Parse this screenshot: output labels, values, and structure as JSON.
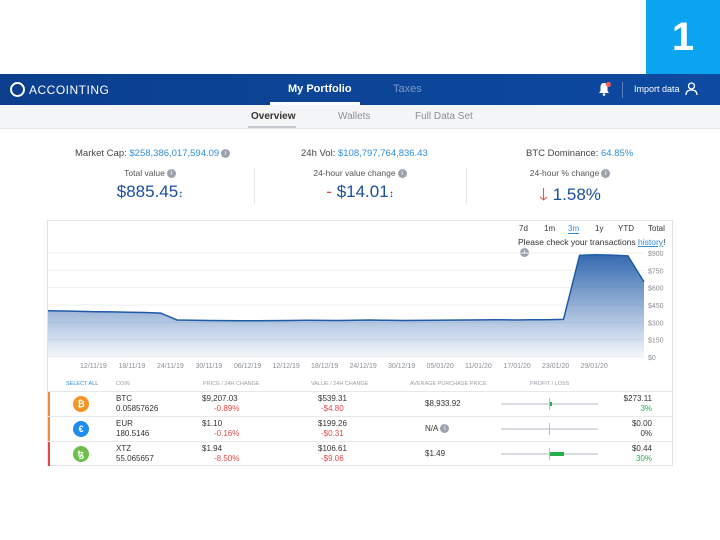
{
  "slide_number": "1",
  "app": {
    "logo_text": "ACCOINTING"
  },
  "top_tabs": [
    {
      "label": "My Portfolio"
    },
    {
      "label": "Taxes"
    }
  ],
  "header_actions": {
    "import_label": "Import data"
  },
  "sub_tabs": [
    {
      "label": "Overview"
    },
    {
      "label": "Wallets"
    },
    {
      "label": "Full Data Set"
    }
  ],
  "market": {
    "market_cap_label": "Market Cap:",
    "market_cap_value": "$258,386,017,594.09",
    "vol_label": "24h Vol:",
    "vol_value": "$108,797,764,836.43",
    "dominance_label": "BTC Dominance:",
    "dominance_value": "64.85%"
  },
  "kpis": {
    "total_label": "Total value",
    "total_value": "$885.45",
    "change_label": "24-hour value change",
    "change_sign": "- ",
    "change_value": "$14.01",
    "pct_label": "24-hour % change",
    "pct_value": "1.58%"
  },
  "ranges": [
    "7d",
    "1m",
    "3m",
    "1y",
    "YTD",
    "Total"
  ],
  "active_range": "3m",
  "notice": {
    "text": "Please check your transactions ",
    "link": "history",
    "tail": "!"
  },
  "chart_data": {
    "type": "area",
    "x_labels": [
      "12/11/19",
      "18/11/19",
      "24/11/19",
      "30/11/19",
      "06/12/19",
      "12/12/19",
      "18/12/19",
      "24/12/19",
      "30/12/19",
      "05/01/20",
      "11/01/20",
      "17/01/20",
      "23/01/20",
      "29/01/20"
    ],
    "y_ticks": [
      "$900",
      "$750",
      "$600",
      "$450",
      "$300",
      "$150",
      "$0"
    ],
    "ylim": [
      0,
      900
    ],
    "color": "#1f5aa8",
    "values": [
      400,
      398,
      395,
      392,
      390,
      388,
      385,
      380,
      320,
      318,
      316,
      315,
      314,
      313,
      315,
      316,
      318,
      317,
      316,
      318,
      320,
      318,
      316,
      317,
      318,
      319,
      320,
      321,
      322,
      320,
      322,
      323,
      325,
      880,
      885,
      882,
      875,
      650
    ]
  },
  "table": {
    "headers": {
      "select": "SELECT ALL",
      "coin": "COIN",
      "price": "PRICE / 24H CHANGE",
      "value": "VALUE / 24H CHANGE",
      "avg": "AVERAGE PURCHASE PRICE",
      "pl": "PROFIT / LOSS"
    },
    "rows": [
      {
        "icon": "bitcoin-icon",
        "icon_glyph": "₿",
        "icon_color": "#f39524",
        "bar_color": "#f08a3a",
        "symbol": "BTC",
        "amount": "0.05857626",
        "price": "$9,207.03",
        "price_change": "-0.89%",
        "value": "$539.31",
        "value_change": "-$4.80",
        "avg_price": "$8,933.92",
        "pl_value": "$273.11",
        "pl_pct": "3%",
        "pl_fill": 0.03
      },
      {
        "icon": "euro-icon",
        "icon_glyph": "€",
        "icon_color": "#1f8cf0",
        "bar_color": "#f08a3a",
        "symbol": "EUR",
        "amount": "180.5146",
        "price": "$1.10",
        "price_change": "-0.16%",
        "value": "$199.26",
        "value_change": "-$0.31",
        "avg_price": "N/A",
        "pl_value": "$0.00",
        "pl_pct": "0%",
        "pl_fill": 0.0
      },
      {
        "icon": "tezos-icon",
        "icon_glyph": "ꜩ",
        "icon_color": "#6cc04a",
        "bar_color": "#e04848",
        "symbol": "XTZ",
        "amount": "55.065657",
        "price": "$1.94",
        "price_change": "-8.50%",
        "value": "$106.61",
        "value_change": "-$9.06",
        "avg_price": "$1.49",
        "pl_value": "$0.44",
        "pl_pct": "30%",
        "pl_fill": 0.3
      }
    ]
  }
}
